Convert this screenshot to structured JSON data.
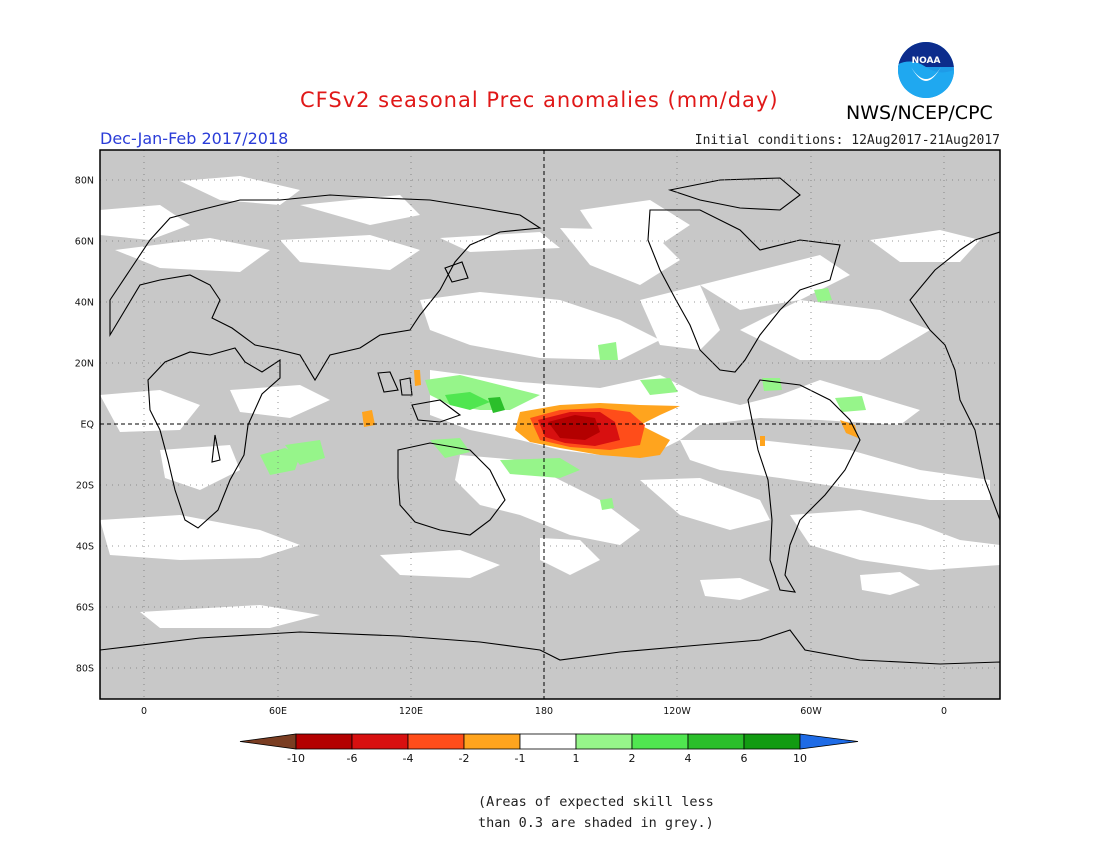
{
  "header": {
    "title": "CFSv2 seasonal Prec anomalies (mm/day)",
    "season": "Dec-Jan-Feb 2017/2018",
    "initial_conditions": "Initial conditions: 12Aug2017-21Aug2017",
    "agency": "NWS/NCEP/CPC",
    "logo_text": "NOAA"
  },
  "map": {
    "projection": "equirectangular",
    "lon_range": [
      -20,
      382
    ],
    "lat_range": [
      -90,
      90
    ],
    "latitude_labels": [
      "80N",
      "60N",
      "40N",
      "20N",
      "EQ",
      "20S",
      "40S",
      "60S",
      "80S"
    ],
    "longitude_labels": [
      "0",
      "60E",
      "120E",
      "180",
      "120W",
      "60W",
      "0"
    ],
    "reference_lines": [
      "EQ",
      "180"
    ],
    "gridlines": "dotted",
    "grey_meaning": "skill < 0.3",
    "colors": {
      "grey": "#c8c8c8",
      "white": "#ffffff",
      "coast": "#000000"
    }
  },
  "colorbar": {
    "labels": [
      "-10",
      "-6",
      "-4",
      "-2",
      "-1",
      "1",
      "2",
      "4",
      "6",
      "10"
    ],
    "colors": [
      "#7a3d22",
      "#b30000",
      "#d81010",
      "#ff4d1a",
      "#ffa41e",
      "#ffffff",
      "#96f58a",
      "#50e650",
      "#2bbf2b",
      "#129b12",
      "#1e6be6"
    ]
  },
  "footnote": {
    "line1": "(Areas of expected skill less",
    "line2": "than 0.3 are shaded in grey.)"
  }
}
